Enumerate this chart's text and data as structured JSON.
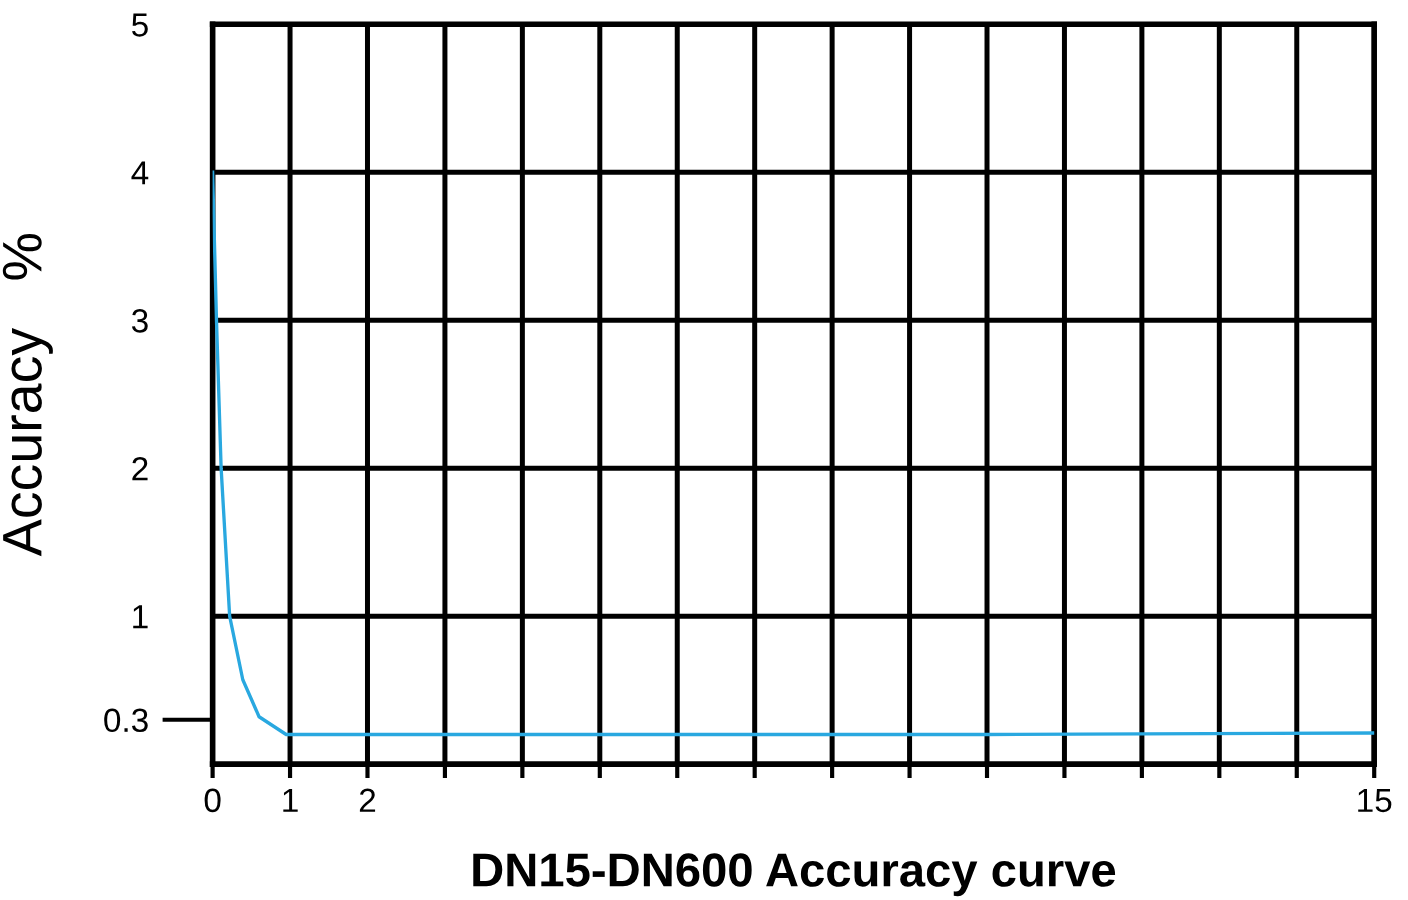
{
  "chart_data": {
    "type": "line",
    "xlabel": "DN15-DN600 Accuracy curve",
    "ylabel": "Accuracy   %",
    "x": [
      0,
      0.05,
      0.11,
      0.22,
      0.39,
      0.6,
      0.95,
      1,
      5,
      10,
      15
    ],
    "series": [
      {
        "color": "#29a8e0",
        "values": [
          4,
          3,
          2,
          1,
          0.57,
          0.32,
          0.2,
          0.2,
          0.2,
          0.2,
          0.21
        ]
      }
    ],
    "xlim": [
      0,
      15
    ],
    "ylim": [
      0,
      5
    ],
    "xticks": [
      0,
      1,
      2,
      {
        "value": 3,
        "label": null
      },
      {
        "value": 4,
        "label": null
      },
      {
        "value": 5,
        "label": null
      },
      {
        "value": 6,
        "label": null
      },
      {
        "value": 7,
        "label": null
      },
      {
        "value": 8,
        "label": null
      },
      {
        "value": 9,
        "label": null
      },
      {
        "value": 10,
        "label": null
      },
      {
        "value": 11,
        "label": null
      },
      {
        "value": 12,
        "label": null
      },
      {
        "value": 13,
        "label": null
      },
      {
        "value": 14,
        "label": null
      },
      15
    ],
    "yticks": [
      0.3,
      1,
      2,
      3,
      4,
      5
    ],
    "grid": true,
    "legend": false,
    "marker": "none",
    "line_style": "solid"
  }
}
